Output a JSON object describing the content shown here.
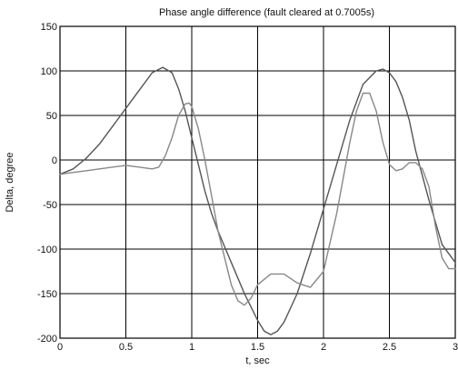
{
  "chart_data": {
    "type": "line",
    "title": "Phase angle difference (fault cleared at 0.7005s)",
    "xlabel": "t, sec",
    "ylabel": "Delta, degree",
    "xlim": [
      0,
      3
    ],
    "ylim": [
      -200,
      150
    ],
    "x_ticks": [
      "0",
      "0.5",
      "1",
      "1.5",
      "2",
      "2.5",
      "3"
    ],
    "y_ticks": [
      "150",
      "100",
      "50",
      "0",
      "-50",
      "-100",
      "-150",
      "-200"
    ],
    "grid": true,
    "series": [
      {
        "color": "#555555",
        "x": [
          0,
          0.1,
          0.2,
          0.3,
          0.4,
          0.5,
          0.6,
          0.7,
          0.78,
          0.85,
          0.9,
          0.95,
          1.0,
          1.05,
          1.1,
          1.15,
          1.2,
          1.3,
          1.4,
          1.5,
          1.55,
          1.6,
          1.65,
          1.7,
          1.8,
          1.9,
          2.0,
          2.1,
          2.2,
          2.3,
          2.4,
          2.45,
          2.5,
          2.55,
          2.6,
          2.65,
          2.7,
          2.8,
          2.9,
          3.0
        ],
        "y": [
          -16,
          -10,
          2,
          18,
          38,
          58,
          78,
          98,
          104,
          98,
          80,
          55,
          25,
          -5,
          -35,
          -60,
          -80,
          -115,
          -150,
          -180,
          -192,
          -196,
          -192,
          -182,
          -150,
          -105,
          -55,
          -5,
          45,
          85,
          100,
          102,
          98,
          88,
          70,
          45,
          10,
          -45,
          -95,
          -115
        ]
      },
      {
        "color": "#888888",
        "x": [
          0,
          0.1,
          0.2,
          0.3,
          0.4,
          0.5,
          0.6,
          0.7,
          0.75,
          0.8,
          0.85,
          0.9,
          0.95,
          0.98,
          1.0,
          1.05,
          1.1,
          1.15,
          1.2,
          1.3,
          1.35,
          1.4,
          1.45,
          1.5,
          1.6,
          1.7,
          1.8,
          1.9,
          2.0,
          2.1,
          2.2,
          2.25,
          2.3,
          2.35,
          2.4,
          2.45,
          2.5,
          2.55,
          2.6,
          2.65,
          2.7,
          2.75,
          2.8,
          2.85,
          2.9,
          2.95,
          3.0
        ],
        "y": [
          -16,
          -14,
          -12,
          -10,
          -8,
          -6,
          -8,
          -10,
          -8,
          5,
          25,
          50,
          63,
          64,
          60,
          35,
          0,
          -40,
          -80,
          -140,
          -158,
          -163,
          -155,
          -140,
          -128,
          -128,
          -138,
          -143,
          -125,
          -60,
          20,
          55,
          75,
          75,
          55,
          20,
          -5,
          -12,
          -10,
          -3,
          -3,
          -10,
          -30,
          -75,
          -110,
          -122,
          -122
        ]
      }
    ]
  }
}
